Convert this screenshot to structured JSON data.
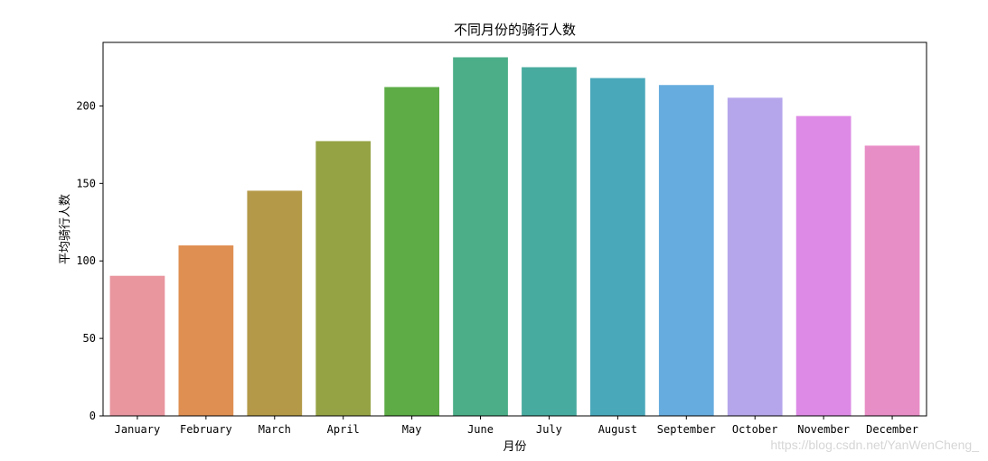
{
  "chart_data": {
    "type": "bar",
    "title": "不同月份的骑行人数",
    "xlabel": "月份",
    "ylabel": "平均骑行人数",
    "categories": [
      "January",
      "February",
      "March",
      "April",
      "May",
      "June",
      "July",
      "August",
      "September",
      "October",
      "November",
      "December"
    ],
    "values": [
      90.4,
      110.0,
      145.3,
      177.3,
      212.2,
      231.4,
      225.0,
      218.0,
      213.5,
      205.3,
      193.5,
      174.4
    ],
    "ylim": [
      0,
      241
    ],
    "yticks": [
      0,
      50,
      100,
      150,
      200
    ],
    "colors": [
      "#e9969f",
      "#e08f52",
      "#b49a48",
      "#96a345",
      "#5dac46",
      "#4bae88",
      "#48ab9f",
      "#4aa8bb",
      "#67acdf",
      "#b5a6ec",
      "#dd8ae6",
      "#e88ec6"
    ],
    "grid": false,
    "legend": "none"
  },
  "watermark": "https://blog.csdn.net/YanWenCheng_"
}
